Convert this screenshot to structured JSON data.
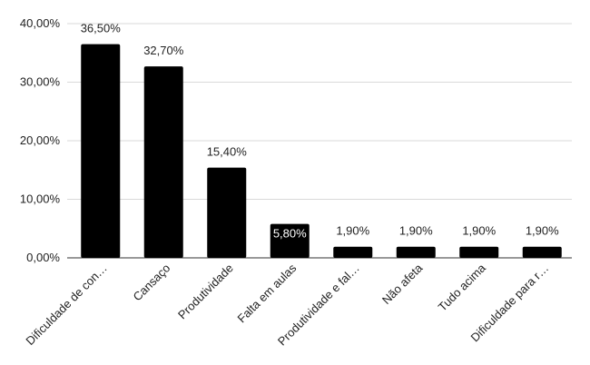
{
  "chart_data": {
    "type": "bar",
    "categories": [
      "Dificuldade de con…",
      "Cansaço",
      "Produtividade",
      "Falta em aulas",
      "Produtividade e fal…",
      "Não afeta",
      "Tudo acima",
      "Dificuldade para r…"
    ],
    "values": [
      36.5,
      32.7,
      15.4,
      5.8,
      1.9,
      1.9,
      1.9,
      1.9
    ],
    "data_labels": [
      "36,50%",
      "32,70%",
      "15,40%",
      "5,80%",
      "1,90%",
      "1,90%",
      "1,90%",
      "1,90%"
    ],
    "y_ticks": [
      0,
      10,
      20,
      30,
      40
    ],
    "y_tick_labels": [
      "0,00%",
      "10,00%",
      "20,00%",
      "30,00%",
      "40,00%"
    ],
    "ylim": [
      0,
      40
    ],
    "grid": true,
    "bar_color": "#000000",
    "grid_color": "#d9d9d9",
    "title": "",
    "xlabel": "",
    "ylabel": ""
  }
}
